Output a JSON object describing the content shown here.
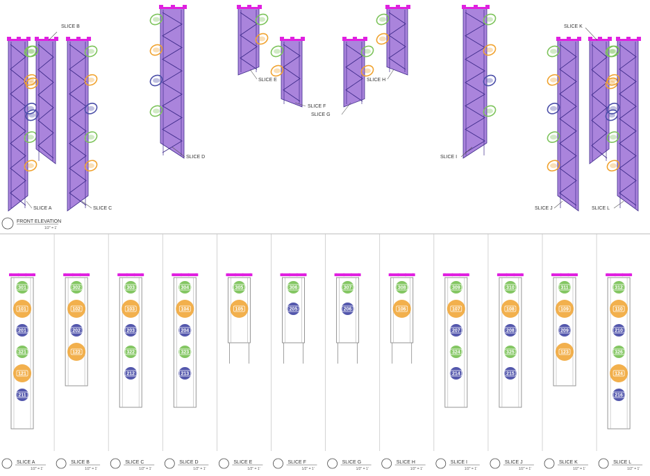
{
  "elevation": {
    "title": "FRONT ELEVATION",
    "scale": "1/2\" = 1'",
    "slice_labels": [
      "SLICE A",
      "SLICE B",
      "SLICE C",
      "SLICE D",
      "SLICE E",
      "SLICE F",
      "SLICE G",
      "SLICE H",
      "SLICE I",
      "SLICE J",
      "SLICE K",
      "SLICE L"
    ]
  },
  "slices": [
    {
      "label": "SLICE A",
      "scale": "1/2\" = 1'",
      "items": [
        {
          "id": "301",
          "kind": "green"
        },
        {
          "id": "101",
          "kind": "orange"
        },
        {
          "id": "201",
          "kind": "blue"
        },
        {
          "id": "321",
          "kind": "green"
        },
        {
          "id": "121",
          "kind": "orange"
        },
        {
          "id": "211",
          "kind": "blue"
        }
      ]
    },
    {
      "label": "SLICE B",
      "scale": "1/2\" = 1'",
      "items": [
        {
          "id": "302",
          "kind": "green"
        },
        {
          "id": "102",
          "kind": "orange"
        },
        {
          "id": "202",
          "kind": "blue"
        },
        {
          "id": "122",
          "kind": "orange"
        }
      ]
    },
    {
      "label": "SLICE C",
      "scale": "1/2\" = 1'",
      "items": [
        {
          "id": "303",
          "kind": "green"
        },
        {
          "id": "103",
          "kind": "orange"
        },
        {
          "id": "203",
          "kind": "blue"
        },
        {
          "id": "322",
          "kind": "green"
        },
        {
          "id": "212",
          "kind": "blue"
        }
      ]
    },
    {
      "label": "SLICE D",
      "scale": "1/2\" = 1'",
      "items": [
        {
          "id": "304",
          "kind": "green"
        },
        {
          "id": "104",
          "kind": "orange"
        },
        {
          "id": "204",
          "kind": "blue"
        },
        {
          "id": "323",
          "kind": "green"
        },
        {
          "id": "213",
          "kind": "blue"
        }
      ]
    },
    {
      "label": "SLICE E",
      "scale": "1/2\" = 1'",
      "items": [
        {
          "id": "305",
          "kind": "green"
        },
        {
          "id": "105",
          "kind": "orange"
        }
      ]
    },
    {
      "label": "SLICE F",
      "scale": "1/2\" = 1'",
      "items": [
        {
          "id": "306",
          "kind": "green"
        },
        {
          "id": "205",
          "kind": "blue"
        }
      ]
    },
    {
      "label": "SLICE G",
      "scale": "1/2\" = 1'",
      "items": [
        {
          "id": "307",
          "kind": "green"
        },
        {
          "id": "206",
          "kind": "blue"
        }
      ]
    },
    {
      "label": "SLICE H",
      "scale": "1/2\" = 1'",
      "items": [
        {
          "id": "308",
          "kind": "green"
        },
        {
          "id": "106",
          "kind": "orange"
        }
      ]
    },
    {
      "label": "SLICE I",
      "scale": "1/2\" = 1'",
      "items": [
        {
          "id": "309",
          "kind": "green"
        },
        {
          "id": "107",
          "kind": "orange"
        },
        {
          "id": "207",
          "kind": "blue"
        },
        {
          "id": "324",
          "kind": "green"
        },
        {
          "id": "214",
          "kind": "blue"
        }
      ]
    },
    {
      "label": "SLICE J",
      "scale": "1/2\" = 1'",
      "items": [
        {
          "id": "310",
          "kind": "green"
        },
        {
          "id": "108",
          "kind": "orange"
        },
        {
          "id": "208",
          "kind": "blue"
        },
        {
          "id": "325",
          "kind": "green"
        },
        {
          "id": "215",
          "kind": "blue"
        }
      ]
    },
    {
      "label": "SLICE K",
      "scale": "1/2\" = 1'",
      "items": [
        {
          "id": "311",
          "kind": "green"
        },
        {
          "id": "109",
          "kind": "orange"
        },
        {
          "id": "209",
          "kind": "blue"
        },
        {
          "id": "123",
          "kind": "orange"
        }
      ]
    },
    {
      "label": "SLICE L",
      "scale": "1/2\" = 1'",
      "items": [
        {
          "id": "312",
          "kind": "green"
        },
        {
          "id": "110",
          "kind": "orange"
        },
        {
          "id": "210",
          "kind": "blue"
        },
        {
          "id": "326",
          "kind": "green"
        },
        {
          "id": "124",
          "kind": "orange"
        },
        {
          "id": "216",
          "kind": "blue"
        }
      ]
    }
  ],
  "colors": {
    "purple": "#9b6fd6",
    "purple_dark": "#3d2a8a",
    "magenta": "#e020e0",
    "green": "#7cc35a",
    "orange": "#f0a22e",
    "blue": "#4a4ea8",
    "line": "#888888"
  }
}
